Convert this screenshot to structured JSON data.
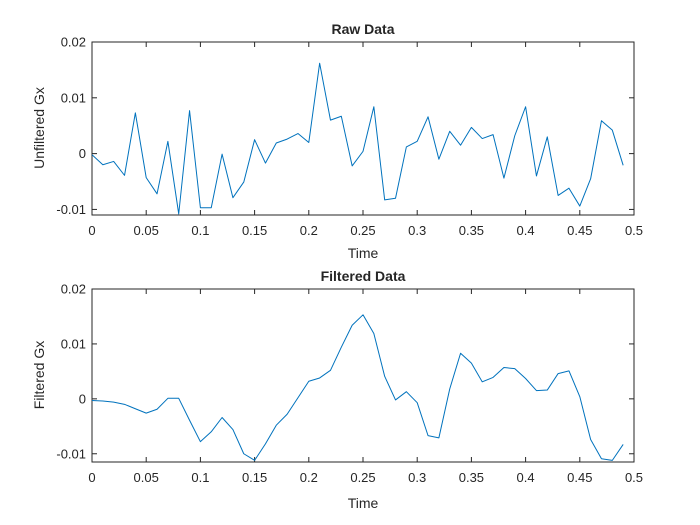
{
  "chart_data": [
    {
      "type": "line",
      "title": "Raw Data",
      "xlabel": "Time",
      "ylabel": "Unfiltered Gx",
      "xlim": [
        0,
        0.5
      ],
      "ylim": [
        -0.011,
        0.02
      ],
      "xticks": [
        0,
        0.05,
        0.1,
        0.15,
        0.2,
        0.25,
        0.3,
        0.35,
        0.4,
        0.45,
        0.5
      ],
      "xtick_labels": [
        "0",
        "0.05",
        "0.1",
        "0.15",
        "0.2",
        "0.25",
        "0.3",
        "0.35",
        "0.4",
        "0.45",
        "0.5"
      ],
      "yticks": [
        -0.01,
        0,
        0.01,
        0.02
      ],
      "ytick_labels": [
        "-0.01",
        "0",
        "0.01",
        "0.02"
      ],
      "grid": false,
      "line_color": "#0072bd",
      "series": [
        {
          "x": [
            0,
            0.01,
            0.02,
            0.03,
            0.04,
            0.05,
            0.06,
            0.07,
            0.08,
            0.09,
            0.1,
            0.11,
            0.12,
            0.13,
            0.14,
            0.15,
            0.16,
            0.17,
            0.18,
            0.19,
            0.2,
            0.21,
            0.22,
            0.23,
            0.24,
            0.25,
            0.26,
            0.27,
            0.28,
            0.29,
            0.3,
            0.31,
            0.32,
            0.33,
            0.34,
            0.35,
            0.36,
            0.37,
            0.38,
            0.39,
            0.4,
            0.41,
            0.42,
            0.43,
            0.44,
            0.45,
            0.46,
            0.47,
            0.48,
            0.49
          ],
          "y": [
            -0.0002,
            -0.002,
            -0.0014,
            -0.0039,
            0.0073,
            -0.0043,
            -0.0072,
            0.0022,
            -0.0108,
            0.0077,
            -0.0097,
            -0.0097,
            -0.0001,
            -0.0079,
            -0.0051,
            0.0025,
            -0.0017,
            0.0019,
            0.0026,
            0.0036,
            0.002,
            0.0162,
            0.006,
            0.0067,
            -0.0022,
            0.0004,
            0.0084,
            -0.0083,
            -0.008,
            0.0012,
            0.0022,
            0.0066,
            -0.001,
            0.004,
            0.0015,
            0.0047,
            0.0027,
            0.0034,
            -0.0044,
            0.0032,
            0.0084,
            -0.004,
            0.003,
            -0.0075,
            -0.0062,
            -0.0094,
            -0.0045,
            0.0059,
            0.0042,
            -0.0021
          ]
        }
      ]
    },
    {
      "type": "line",
      "title": "Filtered Data",
      "xlabel": "Time",
      "ylabel": "Filtered Gx",
      "xlim": [
        0,
        0.5
      ],
      "ylim": [
        -0.0115,
        0.02
      ],
      "xticks": [
        0,
        0.05,
        0.1,
        0.15,
        0.2,
        0.25,
        0.3,
        0.35,
        0.4,
        0.45,
        0.5
      ],
      "xtick_labels": [
        "0",
        "0.05",
        "0.1",
        "0.15",
        "0.2",
        "0.25",
        "0.3",
        "0.35",
        "0.4",
        "0.45",
        "0.5"
      ],
      "yticks": [
        -0.01,
        0,
        0.01,
        0.02
      ],
      "ytick_labels": [
        "-0.01",
        "0",
        "0.01",
        "0.02"
      ],
      "grid": false,
      "line_color": "#0072bd",
      "series": [
        {
          "x": [
            0,
            0.01,
            0.02,
            0.03,
            0.04,
            0.05,
            0.06,
            0.07,
            0.08,
            0.09,
            0.1,
            0.11,
            0.12,
            0.13,
            0.14,
            0.15,
            0.16,
            0.17,
            0.18,
            0.19,
            0.2,
            0.21,
            0.22,
            0.23,
            0.24,
            0.25,
            0.26,
            0.27,
            0.28,
            0.29,
            0.3,
            0.31,
            0.32,
            0.33,
            0.34,
            0.35,
            0.36,
            0.37,
            0.38,
            0.39,
            0.4,
            0.41,
            0.42,
            0.43,
            0.44,
            0.45,
            0.46,
            0.47,
            0.48,
            0.49
          ],
          "y": [
            -0.0003,
            -0.0004,
            -0.0006,
            -0.001,
            -0.0018,
            -0.0026,
            -0.0019,
            0.0001,
            0.0001,
            -0.0039,
            -0.0078,
            -0.006,
            -0.0034,
            -0.0056,
            -0.01,
            -0.0112,
            -0.0082,
            -0.0048,
            -0.0028,
            0.0002,
            0.0032,
            0.0038,
            0.0052,
            0.0094,
            0.0134,
            0.0153,
            0.0119,
            0.0041,
            -0.0002,
            0.0013,
            -0.0007,
            -0.0067,
            -0.0071,
            0.0018,
            0.0083,
            0.0065,
            0.0031,
            0.0039,
            0.0057,
            0.0055,
            0.0037,
            0.0015,
            0.0016,
            0.0046,
            0.0051,
            0.0004,
            -0.0074,
            -0.0109,
            -0.0112,
            -0.0083
          ]
        }
      ]
    }
  ]
}
